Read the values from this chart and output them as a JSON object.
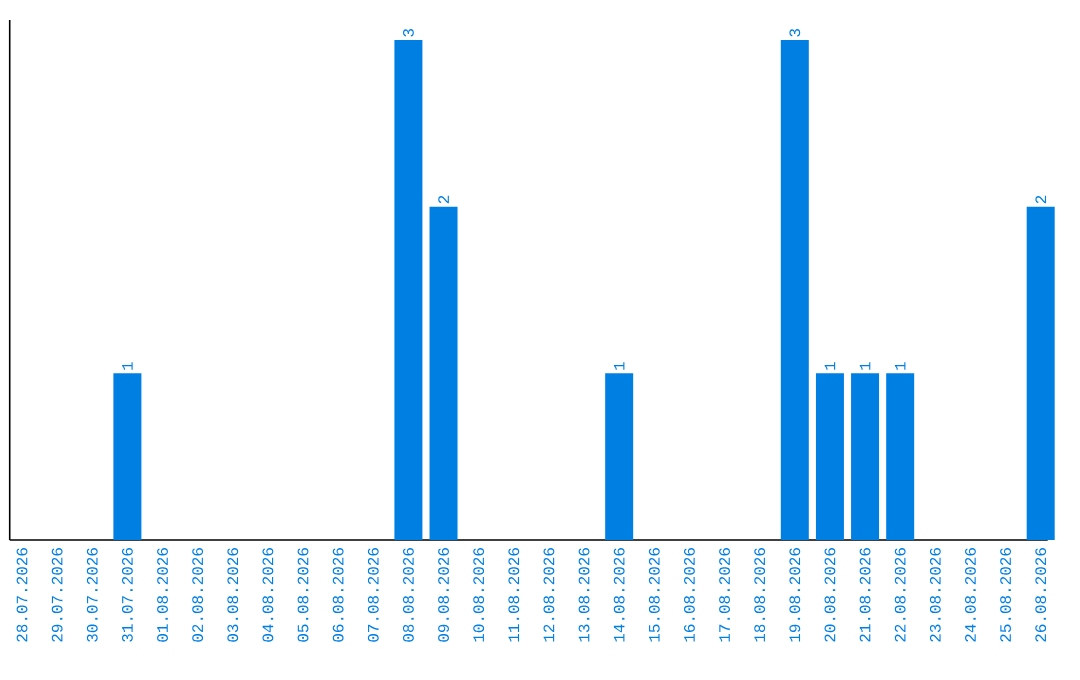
{
  "chart_data": {
    "type": "bar",
    "categories": [
      "28.07.2026",
      "29.07.2026",
      "30.07.2026",
      "31.07.2026",
      "01.08.2026",
      "02.08.2026",
      "03.08.2026",
      "04.08.2026",
      "05.08.2026",
      "06.08.2026",
      "07.08.2026",
      "08.08.2026",
      "09.08.2026",
      "10.08.2026",
      "11.08.2026",
      "12.08.2026",
      "13.08.2026",
      "14.08.2026",
      "15.08.2026",
      "16.08.2026",
      "17.08.2026",
      "18.08.2026",
      "19.08.2026",
      "20.08.2026",
      "21.08.2026",
      "22.08.2026",
      "23.08.2026",
      "24.08.2026",
      "25.08.2026",
      "26.08.2026"
    ],
    "values": [
      0,
      0,
      0,
      1,
      0,
      0,
      0,
      0,
      0,
      0,
      0,
      3,
      2,
      0,
      0,
      0,
      0,
      1,
      0,
      0,
      0,
      0,
      3,
      1,
      1,
      1,
      0,
      0,
      0,
      2
    ],
    "value_labels": [
      null,
      null,
      null,
      "1",
      null,
      null,
      null,
      null,
      null,
      null,
      null,
      "3",
      "2",
      null,
      null,
      null,
      null,
      "1",
      null,
      null,
      null,
      null,
      "3",
      "1",
      "1",
      "1",
      null,
      null,
      null,
      "2"
    ],
    "color": "#007fe3",
    "ylim": [
      0,
      3.12
    ],
    "tick_labels": "x"
  }
}
